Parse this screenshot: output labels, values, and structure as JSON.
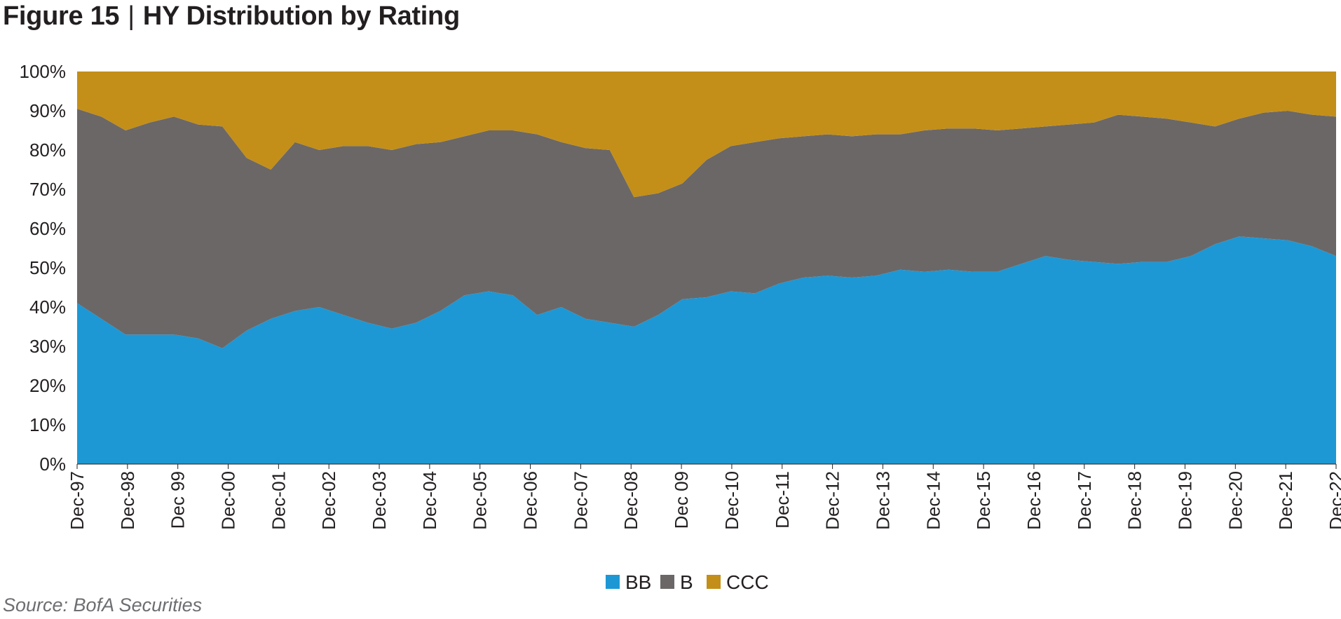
{
  "figure": {
    "label": "Figure 15",
    "separator": "|",
    "title": "HY Distribution by Rating"
  },
  "source": "Source: BofA Securities",
  "chart_data": {
    "type": "area",
    "stacked": true,
    "percent": true,
    "title": "HY Distribution by Rating",
    "xlabel": "",
    "ylabel": "",
    "ylim": [
      0,
      100
    ],
    "yticks": [
      "0%",
      "10%",
      "20%",
      "30%",
      "40%",
      "50%",
      "60%",
      "70%",
      "80%",
      "90%",
      "100%"
    ],
    "xticks": [
      "Dec-97",
      "Dec-98",
      "Dec 99",
      "Dec-00",
      "Dec-01",
      "Dec-02",
      "Dec-03",
      "Dec-04",
      "Dec-05",
      "Dec-06",
      "Dec-07",
      "Dec-08",
      "Dec 09",
      "Dec-10",
      "Dec-11",
      "Dec-12",
      "Dec-13",
      "Dec-14",
      "Dec-15",
      "Dec-16",
      "Dec-17",
      "Dec-18",
      "Dec-19",
      "Dec-20",
      "Dec-21",
      "Dec-22"
    ],
    "x": [
      "Dec-97",
      "Jun-98",
      "Dec-98",
      "Jun-99",
      "Dec-99",
      "Jun-00",
      "Dec-00",
      "Jun-01",
      "Dec-01",
      "Mar-02",
      "Jun-02",
      "Dec-02",
      "Jun-03",
      "Dec-03",
      "Jun-04",
      "Dec-04",
      "Jun-05",
      "Dec-05",
      "Jun-06",
      "Dec-06",
      "Jun-07",
      "Dec-07",
      "Jun-08",
      "Dec-08",
      "Mar-09",
      "Jun-09",
      "Dec-09",
      "Jun-10",
      "Dec-10",
      "Jun-11",
      "Dec-11",
      "Jun-12",
      "Dec-12",
      "Jun-13",
      "Dec-13",
      "Jun-14",
      "Dec-14",
      "Jun-15",
      "Dec-15",
      "Jun-16",
      "Dec-16",
      "Jun-17",
      "Dec-17",
      "Jun-18",
      "Dec-18",
      "Jun-19",
      "Dec-19",
      "Jun-20",
      "Dec-20",
      "Jun-21",
      "Dec-21",
      "Jun-22",
      "Dec-22"
    ],
    "legend": {
      "position": "bottom-center"
    },
    "grid": false,
    "colors": {
      "BB": "#1d98d5",
      "B": "#6b6767",
      "CCC": "#c38f19"
    },
    "series": [
      {
        "name": "BB",
        "values": [
          41,
          37,
          33,
          33,
          33,
          32,
          29.5,
          34,
          37,
          39,
          40,
          38,
          36,
          34.5,
          36,
          39,
          43,
          44,
          43,
          38,
          40,
          37,
          36,
          35,
          38,
          42,
          42.5,
          44,
          43.5,
          46,
          47.5,
          48,
          47.5,
          48,
          49.5,
          49,
          49.5,
          49,
          49,
          51,
          53,
          52,
          51.5,
          51,
          51.5,
          51.5,
          53,
          56,
          58,
          57.5,
          57,
          55.5,
          53
        ]
      },
      {
        "name": "B",
        "values": [
          49.5,
          51.5,
          52,
          54,
          55.5,
          54.5,
          56.5,
          44,
          38,
          43,
          40,
          43,
          45,
          45.5,
          45.5,
          43,
          40.5,
          41,
          42,
          46,
          42,
          43.5,
          44,
          33,
          31,
          29.5,
          35,
          37,
          38.5,
          37,
          36,
          36,
          36,
          36,
          34.5,
          36,
          36,
          36.5,
          36,
          34.5,
          33,
          34.5,
          35.5,
          38,
          37,
          36.5,
          34,
          30,
          30,
          32,
          33,
          33.5,
          35.5
        ]
      },
      {
        "name": "CCC",
        "values": [
          9.5,
          11.5,
          15,
          13,
          11.5,
          13.5,
          14,
          22,
          25,
          18,
          20,
          19,
          19,
          20,
          18.5,
          18,
          16.5,
          15,
          15,
          16,
          18,
          19.5,
          20,
          32,
          31,
          28.5,
          22.5,
          19,
          18,
          17,
          16.5,
          16,
          16.5,
          16,
          16,
          15,
          14.5,
          14.5,
          15,
          14.5,
          14,
          13.5,
          13,
          11,
          11.5,
          12,
          13,
          14,
          12,
          10.5,
          10,
          11,
          11.5
        ]
      }
    ]
  }
}
